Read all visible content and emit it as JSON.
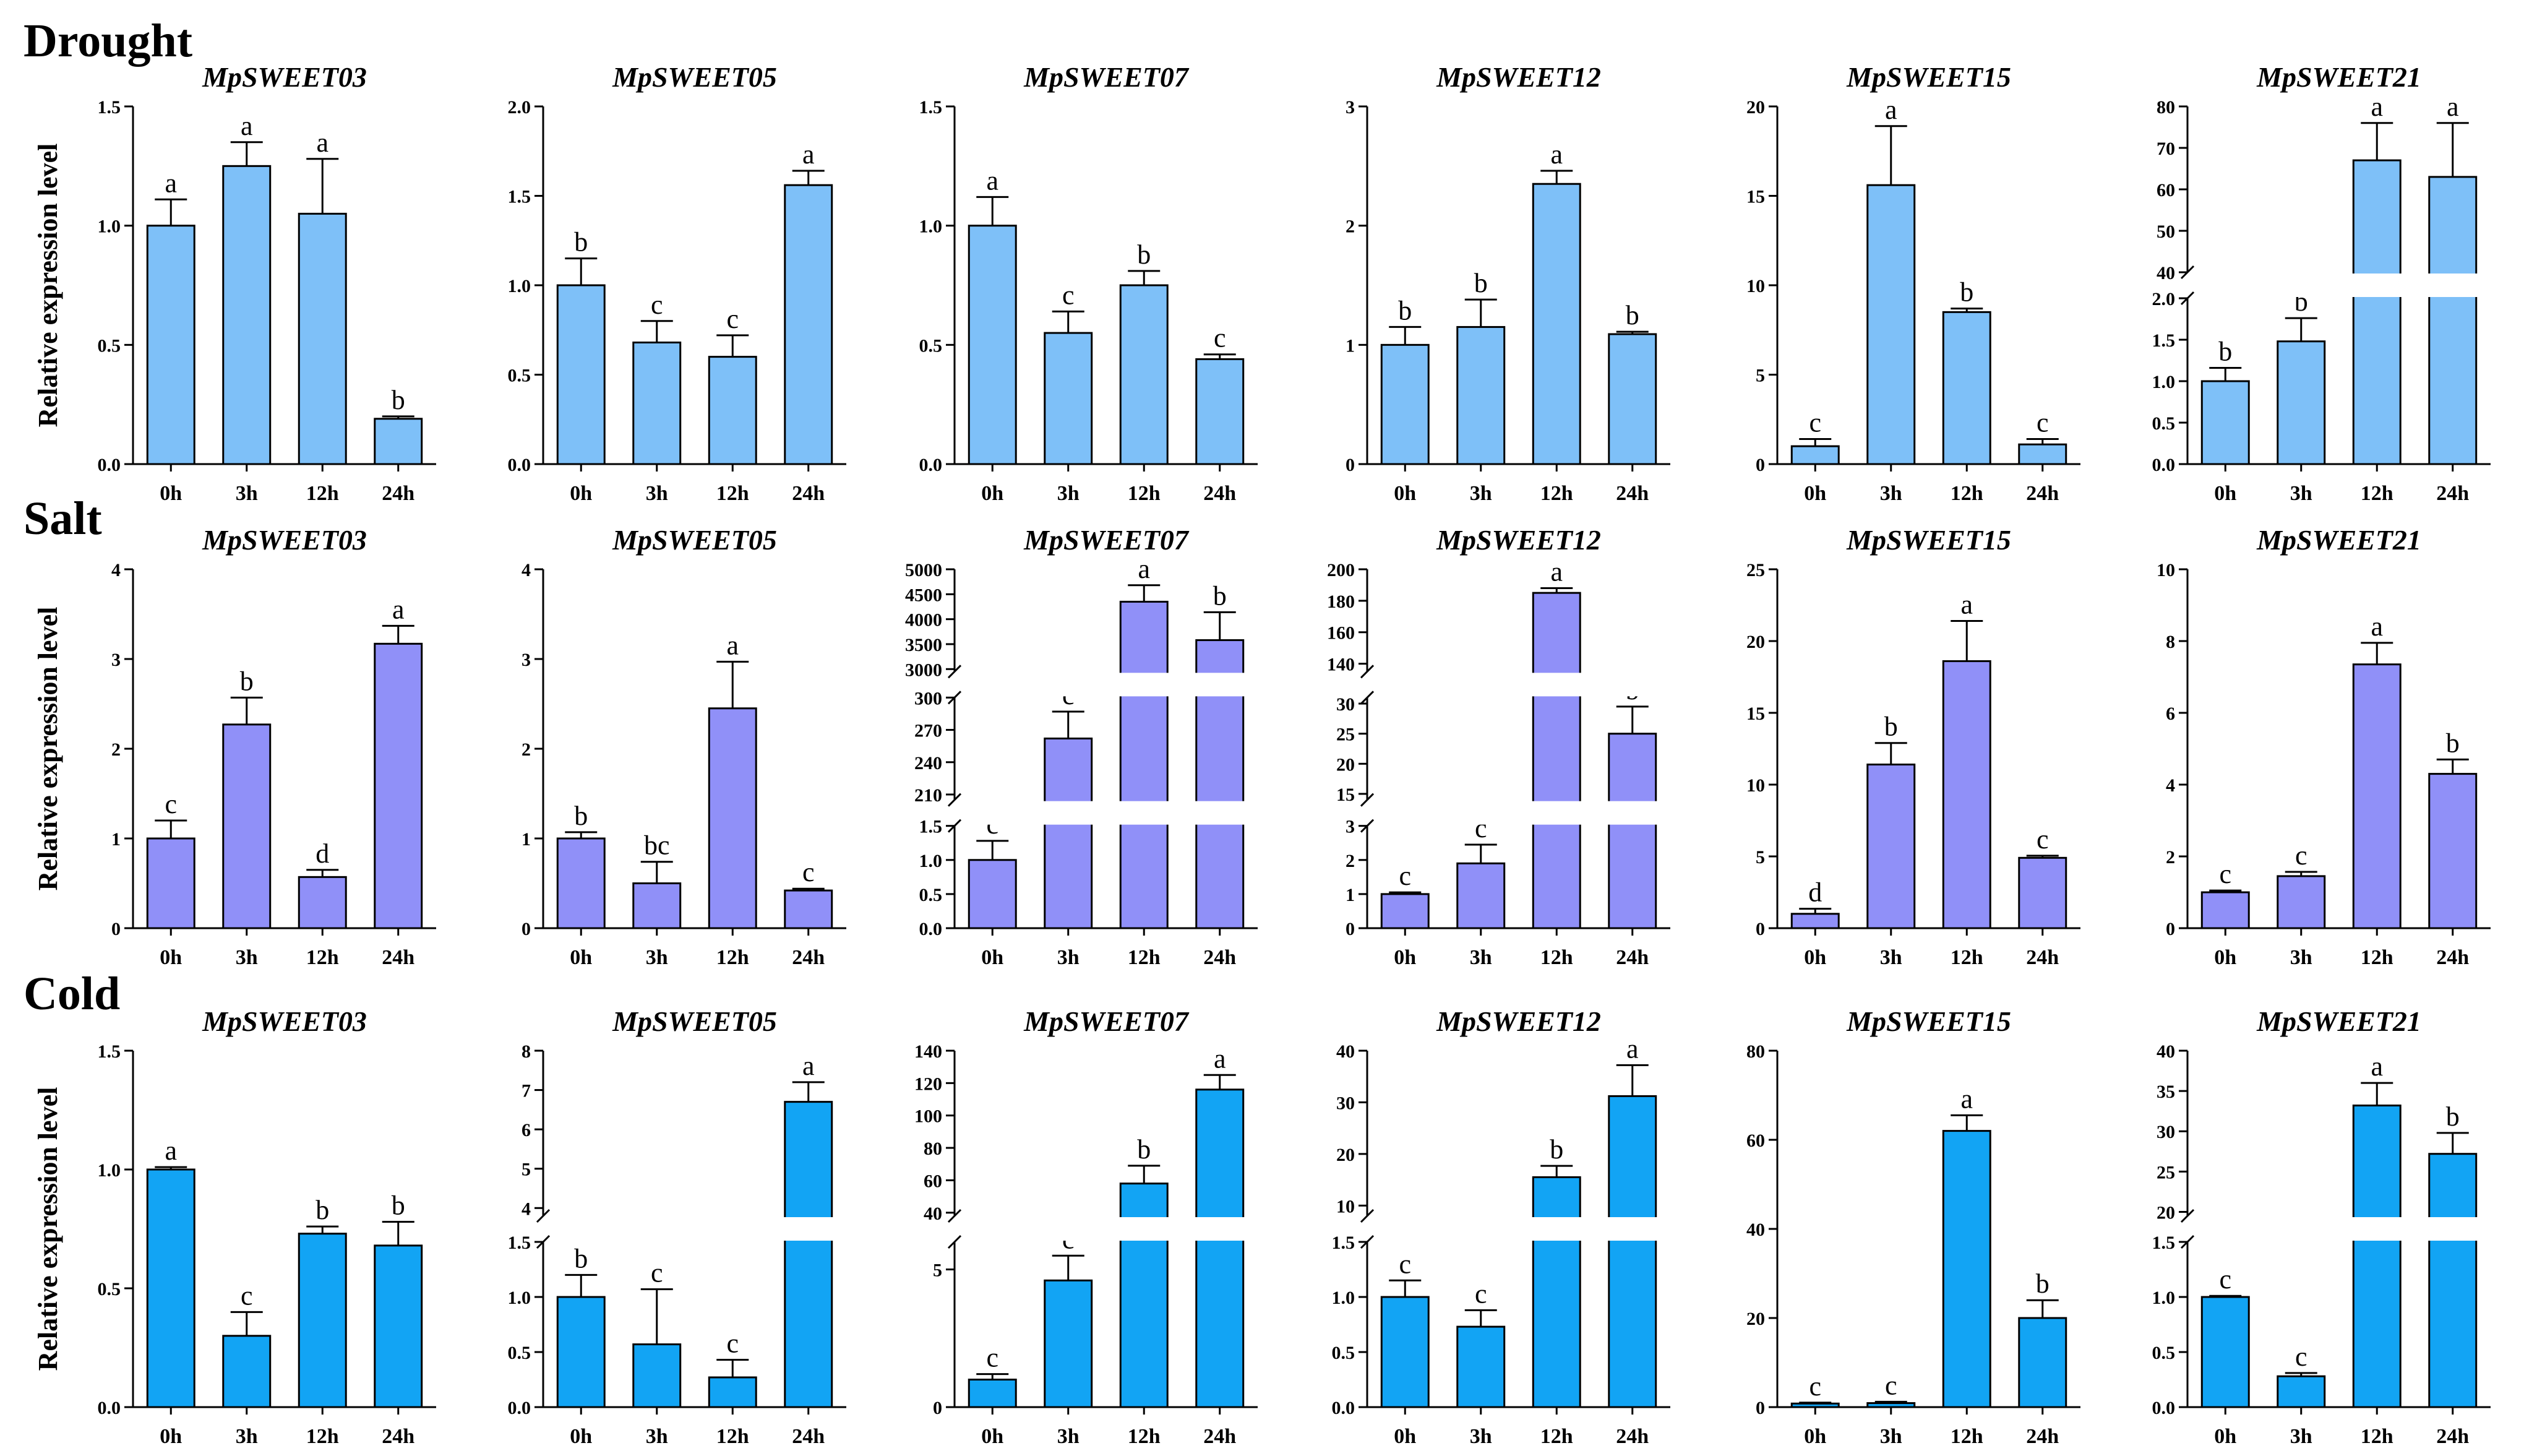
{
  "figure": {
    "categories": [
      "0h",
      "3h",
      "12h",
      "24h"
    ],
    "ylabel": "Relative expression level",
    "colors": {
      "Drought": "#7ec0f8",
      "Salt": "#9090f8",
      "Cold": "#12a4f4"
    }
  },
  "rows": [
    {
      "name": "Drought"
    },
    {
      "name": "Salt"
    },
    {
      "name": "Cold"
    }
  ],
  "chart_data": [
    {
      "type": "bar",
      "stress": "Drought",
      "title": "MpSWEET03",
      "categories": [
        "0h",
        "3h",
        "12h",
        "24h"
      ],
      "values": [
        1.0,
        1.25,
        1.05,
        0.19
      ],
      "errors": [
        0.11,
        0.1,
        0.23,
        0.01
      ],
      "letters": [
        "a",
        "a",
        "a",
        "b"
      ],
      "segments": [
        {
          "lo": 0,
          "hi": 1.5,
          "ticks": [
            0,
            0.5,
            1.0,
            1.5
          ],
          "labels": [
            "0.0",
            "0.5",
            "1.0",
            "1.5"
          ]
        }
      ]
    },
    {
      "type": "bar",
      "stress": "Drought",
      "title": "MpSWEET05",
      "categories": [
        "0h",
        "3h",
        "12h",
        "24h"
      ],
      "values": [
        1.0,
        0.68,
        0.6,
        1.56
      ],
      "errors": [
        0.15,
        0.12,
        0.12,
        0.08
      ],
      "letters": [
        "b",
        "c",
        "c",
        "a"
      ],
      "segments": [
        {
          "lo": 0,
          "hi": 2.0,
          "ticks": [
            0,
            0.5,
            1.0,
            1.5,
            2.0
          ],
          "labels": [
            "0.0",
            "0.5",
            "1.0",
            "1.5",
            "2.0"
          ]
        }
      ]
    },
    {
      "type": "bar",
      "stress": "Drought",
      "title": "MpSWEET07",
      "categories": [
        "0h",
        "3h",
        "12h",
        "24h"
      ],
      "values": [
        1.0,
        0.55,
        0.75,
        0.44
      ],
      "errors": [
        0.12,
        0.09,
        0.06,
        0.02
      ],
      "letters": [
        "a",
        "c",
        "b",
        "c"
      ],
      "segments": [
        {
          "lo": 0,
          "hi": 1.5,
          "ticks": [
            0,
            0.5,
            1.0,
            1.5
          ],
          "labels": [
            "0.0",
            "0.5",
            "1.0",
            "1.5"
          ]
        }
      ]
    },
    {
      "type": "bar",
      "stress": "Drought",
      "title": "MpSWEET12",
      "categories": [
        "0h",
        "3h",
        "12h",
        "24h"
      ],
      "values": [
        1.0,
        1.15,
        2.35,
        1.09
      ],
      "errors": [
        0.15,
        0.23,
        0.11,
        0.02
      ],
      "letters": [
        "b",
        "b",
        "a",
        "b"
      ],
      "segments": [
        {
          "lo": 0,
          "hi": 3,
          "ticks": [
            0,
            1,
            2,
            3
          ],
          "labels": [
            "0",
            "1",
            "2",
            "3"
          ]
        }
      ]
    },
    {
      "type": "bar",
      "stress": "Drought",
      "title": "MpSWEET15",
      "categories": [
        "0h",
        "3h",
        "12h",
        "24h"
      ],
      "values": [
        1.0,
        15.6,
        8.5,
        1.1
      ],
      "errors": [
        0.4,
        3.3,
        0.2,
        0.3
      ],
      "letters": [
        "c",
        "a",
        "b",
        "c"
      ],
      "segments": [
        {
          "lo": 0,
          "hi": 20,
          "ticks": [
            0,
            5,
            10,
            15,
            20
          ],
          "labels": [
            "0",
            "5",
            "10",
            "15",
            "20"
          ]
        }
      ]
    },
    {
      "type": "bar",
      "stress": "Drought",
      "title": "MpSWEET21",
      "categories": [
        "0h",
        "3h",
        "12h",
        "24h"
      ],
      "values": [
        1.0,
        1.48,
        67,
        63
      ],
      "errors": [
        0.16,
        0.28,
        9,
        13
      ],
      "letters": [
        "b",
        "b",
        "a",
        "a"
      ],
      "segments": [
        {
          "lo": 0,
          "hi": 2.0,
          "ticks": [
            0,
            0.5,
            1.0,
            1.5,
            2.0
          ],
          "labels": [
            "0.0",
            "0.5",
            "1.0",
            "1.5",
            "2.0"
          ]
        },
        {
          "lo": 40,
          "hi": 80,
          "ticks": [
            40,
            50,
            60,
            70,
            80
          ],
          "labels": [
            "40",
            "50",
            "60",
            "70",
            "80"
          ]
        }
      ]
    },
    {
      "type": "bar",
      "stress": "Salt",
      "title": "MpSWEET03",
      "categories": [
        "0h",
        "3h",
        "12h",
        "24h"
      ],
      "values": [
        1.0,
        2.27,
        0.57,
        3.17
      ],
      "errors": [
        0.2,
        0.3,
        0.08,
        0.2
      ],
      "letters": [
        "c",
        "b",
        "d",
        "a"
      ],
      "segments": [
        {
          "lo": 0,
          "hi": 4,
          "ticks": [
            0,
            1,
            2,
            3,
            4
          ],
          "labels": [
            "0",
            "1",
            "2",
            "3",
            "4"
          ]
        }
      ]
    },
    {
      "type": "bar",
      "stress": "Salt",
      "title": "MpSWEET05",
      "categories": [
        "0h",
        "3h",
        "12h",
        "24h"
      ],
      "values": [
        1.0,
        0.5,
        2.45,
        0.42
      ],
      "errors": [
        0.07,
        0.24,
        0.52,
        0.02
      ],
      "letters": [
        "b",
        "bc",
        "a",
        "c"
      ],
      "segments": [
        {
          "lo": 0,
          "hi": 4,
          "ticks": [
            0,
            1,
            2,
            3,
            4
          ],
          "labels": [
            "0",
            "1",
            "2",
            "3",
            "4"
          ]
        }
      ]
    },
    {
      "type": "bar",
      "stress": "Salt",
      "title": "MpSWEET07",
      "categories": [
        "0h",
        "3h",
        "12h",
        "24h"
      ],
      "values": [
        1.0,
        262,
        4350,
        3580
      ],
      "errors": [
        0.28,
        25,
        330,
        560
      ],
      "letters": [
        "c",
        "c",
        "a",
        "b"
      ],
      "segments": [
        {
          "lo": 0,
          "hi": 1.5,
          "ticks": [
            0,
            0.5,
            1.0,
            1.5
          ],
          "labels": [
            "0.0",
            "0.5",
            "1.0",
            "1.5"
          ]
        },
        {
          "lo": 205,
          "hi": 300,
          "ticks": [
            210,
            240,
            270,
            300
          ],
          "labels": [
            "210",
            "240",
            "270",
            "300"
          ]
        },
        {
          "lo": 2950,
          "hi": 5000,
          "ticks": [
            3000,
            3500,
            4000,
            4500,
            5000
          ],
          "labels": [
            "3000",
            "3500",
            "4000",
            "4500",
            "5000"
          ]
        }
      ]
    },
    {
      "type": "bar",
      "stress": "Salt",
      "title": "MpSWEET12",
      "categories": [
        "0h",
        "3h",
        "12h",
        "24h"
      ],
      "values": [
        1.0,
        1.9,
        185,
        25
      ],
      "errors": [
        0.05,
        0.55,
        3,
        4.5
      ],
      "letters": [
        "c",
        "c",
        "a",
        "b"
      ],
      "segments": [
        {
          "lo": 0,
          "hi": 3,
          "ticks": [
            0,
            1,
            2,
            3
          ],
          "labels": [
            "0",
            "1",
            "2",
            "3"
          ]
        },
        {
          "lo": 14,
          "hi": 31,
          "ticks": [
            15,
            20,
            25,
            30
          ],
          "labels": [
            "15",
            "20",
            "25",
            "30"
          ]
        },
        {
          "lo": 135,
          "hi": 200,
          "ticks": [
            140,
            160,
            180,
            200
          ],
          "labels": [
            "140",
            "160",
            "180",
            "200"
          ]
        }
      ]
    },
    {
      "type": "bar",
      "stress": "Salt",
      "title": "MpSWEET15",
      "categories": [
        "0h",
        "3h",
        "12h",
        "24h"
      ],
      "values": [
        1.0,
        11.4,
        18.6,
        4.9
      ],
      "errors": [
        0.35,
        1.5,
        2.8,
        0.15
      ],
      "letters": [
        "d",
        "b",
        "a",
        "c"
      ],
      "segments": [
        {
          "lo": 0,
          "hi": 25,
          "ticks": [
            0,
            5,
            10,
            15,
            20,
            25
          ],
          "labels": [
            "0",
            "5",
            "10",
            "15",
            "20",
            "25"
          ]
        }
      ]
    },
    {
      "type": "bar",
      "stress": "Salt",
      "title": "MpSWEET21",
      "categories": [
        "0h",
        "3h",
        "12h",
        "24h"
      ],
      "values": [
        1.0,
        1.45,
        7.35,
        4.3
      ],
      "errors": [
        0.05,
        0.12,
        0.6,
        0.4
      ],
      "letters": [
        "c",
        "c",
        "a",
        "b"
      ],
      "segments": [
        {
          "lo": 0,
          "hi": 10,
          "ticks": [
            0,
            2,
            4,
            6,
            8,
            10
          ],
          "labels": [
            "0",
            "2",
            "4",
            "6",
            "8",
            "10"
          ]
        }
      ]
    },
    {
      "type": "bar",
      "stress": "Cold",
      "title": "MpSWEET03",
      "categories": [
        "0h",
        "3h",
        "12h",
        "24h"
      ],
      "values": [
        1.0,
        0.3,
        0.73,
        0.68
      ],
      "errors": [
        0.01,
        0.1,
        0.03,
        0.1
      ],
      "letters": [
        "a",
        "c",
        "b",
        "b"
      ],
      "segments": [
        {
          "lo": 0,
          "hi": 1.5,
          "ticks": [
            0,
            0.5,
            1.0,
            1.5
          ],
          "labels": [
            "0.0",
            "0.5",
            "1.0",
            "1.5"
          ]
        }
      ]
    },
    {
      "type": "bar",
      "stress": "Cold",
      "title": "MpSWEET05",
      "categories": [
        "0h",
        "3h",
        "12h",
        "24h"
      ],
      "values": [
        1.0,
        0.57,
        0.27,
        6.7
      ],
      "errors": [
        0.2,
        0.5,
        0.16,
        0.5
      ],
      "letters": [
        "b",
        "c",
        "c",
        "a"
      ],
      "segments": [
        {
          "lo": 0,
          "hi": 1.5,
          "ticks": [
            0,
            0.5,
            1.0,
            1.5
          ],
          "labels": [
            "0.0",
            "0.5",
            "1.0",
            "1.5"
          ]
        },
        {
          "lo": 3.8,
          "hi": 8,
          "ticks": [
            4,
            5,
            6,
            7,
            8
          ],
          "labels": [
            "4",
            "5",
            "6",
            "7",
            "8"
          ]
        }
      ]
    },
    {
      "type": "bar",
      "stress": "Cold",
      "title": "MpSWEET07",
      "categories": [
        "0h",
        "3h",
        "12h",
        "24h"
      ],
      "values": [
        1.0,
        4.6,
        58,
        116
      ],
      "errors": [
        0.2,
        0.9,
        11,
        9
      ],
      "letters": [
        "c",
        "c",
        "b",
        "a"
      ],
      "segments": [
        {
          "lo": 0,
          "hi": 6,
          "ticks": [
            0,
            5
          ],
          "labels": [
            "0",
            "5"
          ]
        },
        {
          "lo": 38,
          "hi": 140,
          "ticks": [
            40,
            60,
            80,
            100,
            120,
            140
          ],
          "labels": [
            "40",
            "60",
            "80",
            "100",
            "120",
            "140"
          ]
        }
      ]
    },
    {
      "type": "bar",
      "stress": "Cold",
      "title": "MpSWEET12",
      "categories": [
        "0h",
        "3h",
        "12h",
        "24h"
      ],
      "values": [
        1.0,
        0.73,
        15.5,
        31.2
      ],
      "errors": [
        0.15,
        0.15,
        2.2,
        6
      ],
      "letters": [
        "c",
        "c",
        "b",
        "a"
      ],
      "segments": [
        {
          "lo": 0,
          "hi": 1.5,
          "ticks": [
            0,
            0.5,
            1.0,
            1.5
          ],
          "labels": [
            "0.0",
            "0.5",
            "1.0",
            "1.5"
          ]
        },
        {
          "lo": 8,
          "hi": 40,
          "ticks": [
            10,
            20,
            30,
            40
          ],
          "labels": [
            "10",
            "20",
            "30",
            "40"
          ]
        }
      ]
    },
    {
      "type": "bar",
      "stress": "Cold",
      "title": "MpSWEET15",
      "categories": [
        "0h",
        "3h",
        "12h",
        "24h"
      ],
      "values": [
        0.8,
        0.9,
        62,
        20
      ],
      "errors": [
        0.2,
        0.3,
        3.5,
        4
      ],
      "letters": [
        "c",
        "c",
        "a",
        "b"
      ],
      "segments": [
        {
          "lo": 0,
          "hi": 80,
          "ticks": [
            0,
            20,
            40,
            60,
            80
          ],
          "labels": [
            "0",
            "20",
            "40",
            "60",
            "80"
          ]
        }
      ]
    },
    {
      "type": "bar",
      "stress": "Cold",
      "title": "MpSWEET21",
      "categories": [
        "0h",
        "3h",
        "12h",
        "24h"
      ],
      "values": [
        1.0,
        0.28,
        33.2,
        27.2
      ],
      "errors": [
        0.01,
        0.03,
        2.8,
        2.6
      ],
      "letters": [
        "c",
        "c",
        "a",
        "b"
      ],
      "segments": [
        {
          "lo": 0,
          "hi": 1.5,
          "ticks": [
            0,
            0.5,
            1.0,
            1.5
          ],
          "labels": [
            "0.0",
            "0.5",
            "1.0",
            "1.5"
          ]
        },
        {
          "lo": 19.5,
          "hi": 40,
          "ticks": [
            20,
            25,
            30,
            35,
            40
          ],
          "labels": [
            "20",
            "25",
            "30",
            "35",
            "40"
          ]
        }
      ]
    }
  ]
}
